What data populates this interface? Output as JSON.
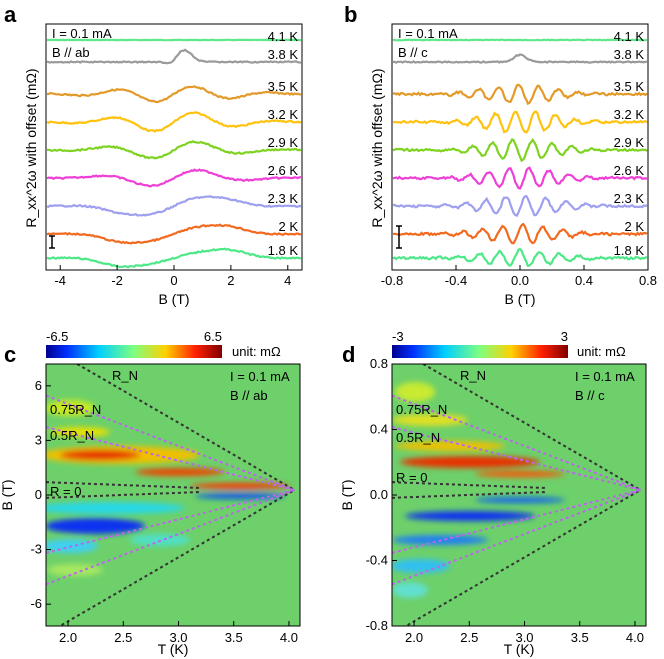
{
  "figure": {
    "panels": [
      {
        "id": "a",
        "label": "a",
        "legend_current": "I = 0.1 mA",
        "legend_field": "B // ab",
        "ylabel": "R_xx^2ω with offset (mΩ)",
        "xlabel": "B (T)",
        "xticks": [
          "-4",
          "-2",
          "0",
          "2",
          "4"
        ],
        "temps": [
          "4.1 K",
          "3.8 K",
          "3.5 K",
          "3.2 K",
          "2.9 K",
          "2.6 K",
          "2.3 K",
          "2 K",
          "1.8 K"
        ]
      },
      {
        "id": "b",
        "label": "b",
        "legend_current": "I = 0.1 mA",
        "legend_field": "B // c",
        "ylabel": "R_xx^2ω with offset (mΩ)",
        "xlabel": "B (T)",
        "xticks": [
          "-0.8",
          "-0.4",
          "0.0",
          "0.4",
          "0.8"
        ],
        "temps": [
          "4.1 K",
          "3.8 K",
          "3.5 K",
          "3.2 K",
          "2.9 K",
          "2.6 K",
          "2.3 K",
          "2 K",
          "1.8 K"
        ]
      },
      {
        "id": "c",
        "label": "c",
        "cbar_min": "-6.5",
        "cbar_max": "6.5",
        "cbar_unit": "unit: mΩ",
        "legend_current": "I = 0.1 mA",
        "legend_field": "B // ab",
        "xlabel": "T (K)",
        "ylabel": "B (T)",
        "xticks": [
          "2.0",
          "2.5",
          "3.0",
          "3.5",
          "4.0"
        ],
        "yticks": [
          "6",
          "3",
          "0",
          "-3",
          "-6"
        ],
        "contours": [
          "R_N",
          "0.75R_N",
          "0.5R_N",
          "R = 0"
        ]
      },
      {
        "id": "d",
        "label": "d",
        "cbar_min": "-3",
        "cbar_max": "3",
        "cbar_unit": "unit: mΩ",
        "legend_current": "I = 0.1 mA",
        "legend_field": "B // c",
        "xlabel": "T (K)",
        "ylabel": "B (T)",
        "xticks": [
          "2.0",
          "2.5",
          "3.0",
          "3.5",
          "4.0"
        ],
        "yticks": [
          "0.8",
          "0.4",
          "0.0",
          "-0.4",
          "-0.8"
        ],
        "contours": [
          "R_N",
          "0.75R_N",
          "0.5R_N",
          "R = 0"
        ]
      }
    ],
    "colors": {
      "4.1 K": "#5ee88a",
      "3.8 K": "#9a9a9a",
      "3.5 K": "#e39a2a",
      "3.2 K": "#ffc20e",
      "2.9 K": "#7ed321",
      "2.6 K": "#ee3fd6",
      "2.3 K": "#9f9ff0",
      "2 K": "#f26a1f",
      "1.8 K": "#4ee889",
      "map_bg": "#6dd06a",
      "rn_contour": "#333333",
      "mid_contour": "#bb66ee"
    }
  }
}
